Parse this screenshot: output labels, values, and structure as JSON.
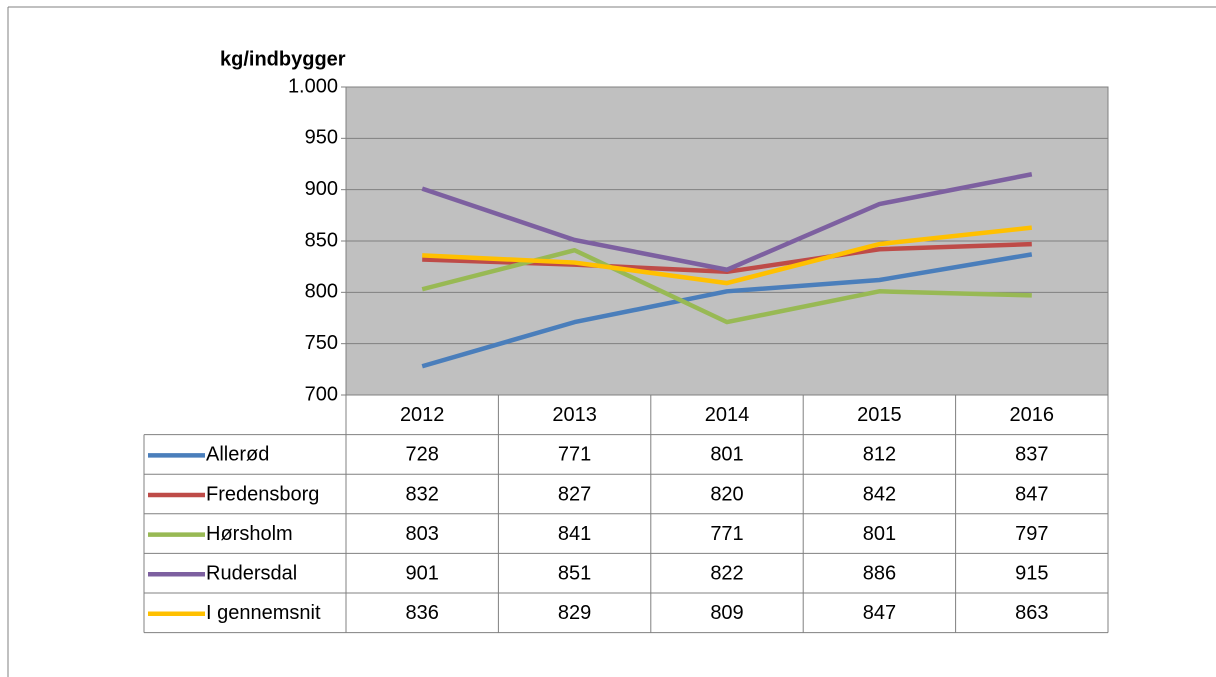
{
  "chart_data": {
    "type": "line",
    "ylabel": "kg/indbygger",
    "categories": [
      "2012",
      "2013",
      "2014",
      "2015",
      "2016"
    ],
    "series": [
      {
        "name": "Allerød",
        "color": "#4a7ebb",
        "values": [
          728,
          771,
          801,
          812,
          837
        ]
      },
      {
        "name": "Fredensborg",
        "color": "#be4b48",
        "values": [
          832,
          827,
          820,
          842,
          847
        ]
      },
      {
        "name": "Hørsholm",
        "color": "#98b954",
        "values": [
          803,
          841,
          771,
          801,
          797
        ]
      },
      {
        "name": "Rudersdal",
        "color": "#7d60a0",
        "values": [
          901,
          851,
          822,
          886,
          915
        ]
      },
      {
        "name": "I gennemsnit",
        "color": "#ffc000",
        "values": [
          836,
          829,
          809,
          847,
          863
        ]
      }
    ],
    "ylim": [
      700,
      1000
    ],
    "yticks": [
      700,
      750,
      800,
      850,
      900,
      950,
      {
        "value": 1000,
        "label": "1.000"
      }
    ],
    "grid": true,
    "plot_background": "#c0c0c0"
  }
}
